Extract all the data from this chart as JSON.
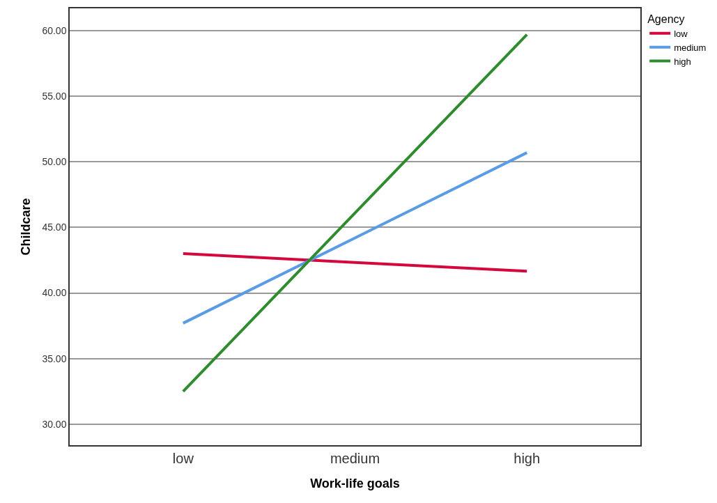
{
  "chart_data": {
    "type": "line",
    "xlabel": "Work-life goals",
    "ylabel": "Childcare",
    "legend_title": "Agency",
    "categories": [
      "low",
      "medium",
      "high"
    ],
    "series": [
      {
        "name": "low",
        "color": "#d5083d",
        "values": [
          43.0,
          42.33,
          41.67
        ]
      },
      {
        "name": "medium",
        "color": "#5a9be6",
        "values": [
          37.7,
          44.2,
          50.7
        ]
      },
      {
        "name": "high",
        "color": "#2e8b2e",
        "values": [
          32.5,
          46.1,
          59.7
        ]
      }
    ],
    "ylim": [
      28.4,
      61.7
    ],
    "yticks": [
      {
        "value": 30,
        "label": "30.00"
      },
      {
        "value": 35,
        "label": "35.00"
      },
      {
        "value": 40,
        "label": "40.00"
      },
      {
        "value": 45,
        "label": "45.00"
      },
      {
        "value": 50,
        "label": "50.00"
      },
      {
        "value": 55,
        "label": "55.00"
      },
      {
        "value": 60,
        "label": "60.00"
      }
    ],
    "grid": "y",
    "legend": "top right",
    "marker": "none",
    "line_style": "solid"
  }
}
